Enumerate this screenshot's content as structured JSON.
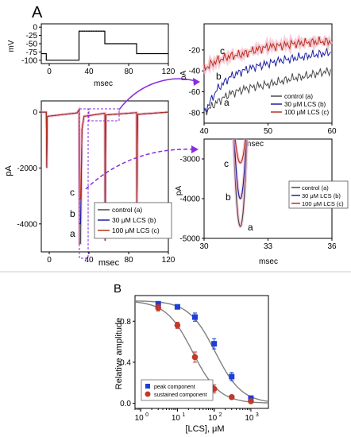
{
  "panel_labels": {
    "a": "A",
    "b": "B"
  },
  "colors": {
    "control": "#4a4a4a",
    "lcs30": "#1f1fa3",
    "lcs100": "#b8321e",
    "halo": "#f4b8c8",
    "peak": "#1c3fd6",
    "sustained": "#c0392b",
    "arrow": "#8a2be2"
  },
  "chart_data": [
    {
      "id": "voltage_protocol",
      "type": "line",
      "ylabel": "mV",
      "xlabel": "msec",
      "xlim": [
        -8,
        120
      ],
      "ylim": [
        -110,
        10
      ],
      "xticks": [
        0,
        40,
        80,
        120
      ],
      "yticks": [
        0,
        -25,
        -50,
        -75,
        -100
      ],
      "series": [
        {
          "x": [
            -8,
            -3,
            -3,
            30,
            30,
            56,
            56,
            88,
            88,
            120
          ],
          "y": [
            -80,
            -80,
            -100,
            -100,
            -12,
            -12,
            -50,
            -50,
            -80,
            -80
          ]
        }
      ]
    },
    {
      "id": "current_traces",
      "type": "line",
      "ylabel": "pA",
      "xlabel": "msec",
      "xlim": [
        -8,
        120
      ],
      "ylim": [
        -5000,
        400
      ],
      "xticks": [
        0,
        40,
        80,
        120
      ],
      "yticks": [
        0,
        -2000,
        -4000
      ],
      "peaks": {
        "control": -4700,
        "lcs30": -4000,
        "lcs100": -3100
      },
      "trace_labels": [
        "a",
        "b",
        "c"
      ],
      "legend": [
        "control (a)",
        "30 μM LCS (b)",
        "100 μM LCS (c)"
      ]
    },
    {
      "id": "sustained_zoom",
      "type": "line",
      "ylabel": "pA",
      "xlabel": "msec",
      "xlim": [
        40,
        60
      ],
      "ylim": [
        -90,
        5
      ],
      "xticks": [
        40,
        50,
        60
      ],
      "yticks": [
        -20,
        -40,
        -60,
        -80
      ],
      "series": [
        {
          "name": "control (a)",
          "x": [
            40,
            42,
            44,
            46,
            48,
            50,
            52,
            54,
            56,
            58,
            60
          ],
          "y": [
            -80,
            -70,
            -62,
            -58,
            -55,
            -53,
            -50,
            -47,
            -45,
            -42,
            -40
          ]
        },
        {
          "name": "30 μM LCS (b)",
          "x": [
            40,
            42,
            44,
            46,
            48,
            50,
            52,
            54,
            56,
            58,
            60
          ],
          "y": [
            -80,
            -58,
            -46,
            -40,
            -36,
            -33,
            -30,
            -28,
            -26,
            -24,
            -22
          ]
        },
        {
          "name": "100 μM LCS (c)",
          "x": [
            40,
            42,
            44,
            46,
            48,
            50,
            52,
            54,
            56,
            58,
            60
          ],
          "y": [
            -38,
            -30,
            -26,
            -24,
            -20,
            -17,
            -16,
            -14,
            -13,
            -12,
            -12
          ]
        }
      ],
      "trace_labels": [
        "c",
        "b",
        "a"
      ],
      "legend": [
        "control (a)",
        "30 μM LCS (b)",
        "100 μM LCS (c)"
      ]
    },
    {
      "id": "peak_zoom",
      "type": "line",
      "ylabel": "pA",
      "xlabel": "msec",
      "xlim": [
        30,
        36
      ],
      "ylim": [
        -5000,
        -2500
      ],
      "xticks": [
        30,
        33,
        36
      ],
      "yticks": [
        -3000,
        -4000,
        -5000
      ],
      "series": [
        {
          "name": "control (a)",
          "peak_x": 31.7,
          "peak_y": -4700
        },
        {
          "name": "30 μM LCS (b)",
          "peak_x": 31.7,
          "peak_y": -4000
        },
        {
          "name": "100 μM LCS (c)",
          "peak_x": 31.7,
          "peak_y": -3100
        }
      ],
      "trace_labels": [
        "c",
        "b",
        "a"
      ],
      "legend": [
        "control (a)",
        "30 μM LCS (b)",
        "100 μM LCS (c)"
      ]
    },
    {
      "id": "concentration_response",
      "type": "scatter",
      "xlabel": "[LCS], μM",
      "ylabel": "Relative amplitude",
      "xscale": "log",
      "xlim": [
        0.7,
        3000
      ],
      "ylim": [
        -0.05,
        1.05
      ],
      "xticks": [
        "10^0",
        "10^1",
        "10^2",
        "10^3"
      ],
      "yticks": [
        0.0,
        0.4,
        0.8
      ],
      "legend_position": "bottom-left",
      "series": [
        {
          "name": "peak component",
          "x": [
            3,
            10,
            30,
            100,
            300,
            1000
          ],
          "y": [
            0.97,
            0.94,
            0.84,
            0.58,
            0.26,
            0.05
          ],
          "err": [
            0.02,
            0.02,
            0.04,
            0.05,
            0.04,
            0.02
          ],
          "fit_ic50": 107,
          "fit_n": 1.2
        },
        {
          "name": "sustained component",
          "x": [
            3,
            10,
            30,
            100,
            300,
            1000
          ],
          "y": [
            0.93,
            0.76,
            0.45,
            0.14,
            0.06,
            0.02
          ],
          "err": [
            0.03,
            0.03,
            0.05,
            0.04,
            0.02,
            0.01
          ],
          "fit_ic50": 26,
          "fit_n": 1.2
        }
      ]
    }
  ]
}
